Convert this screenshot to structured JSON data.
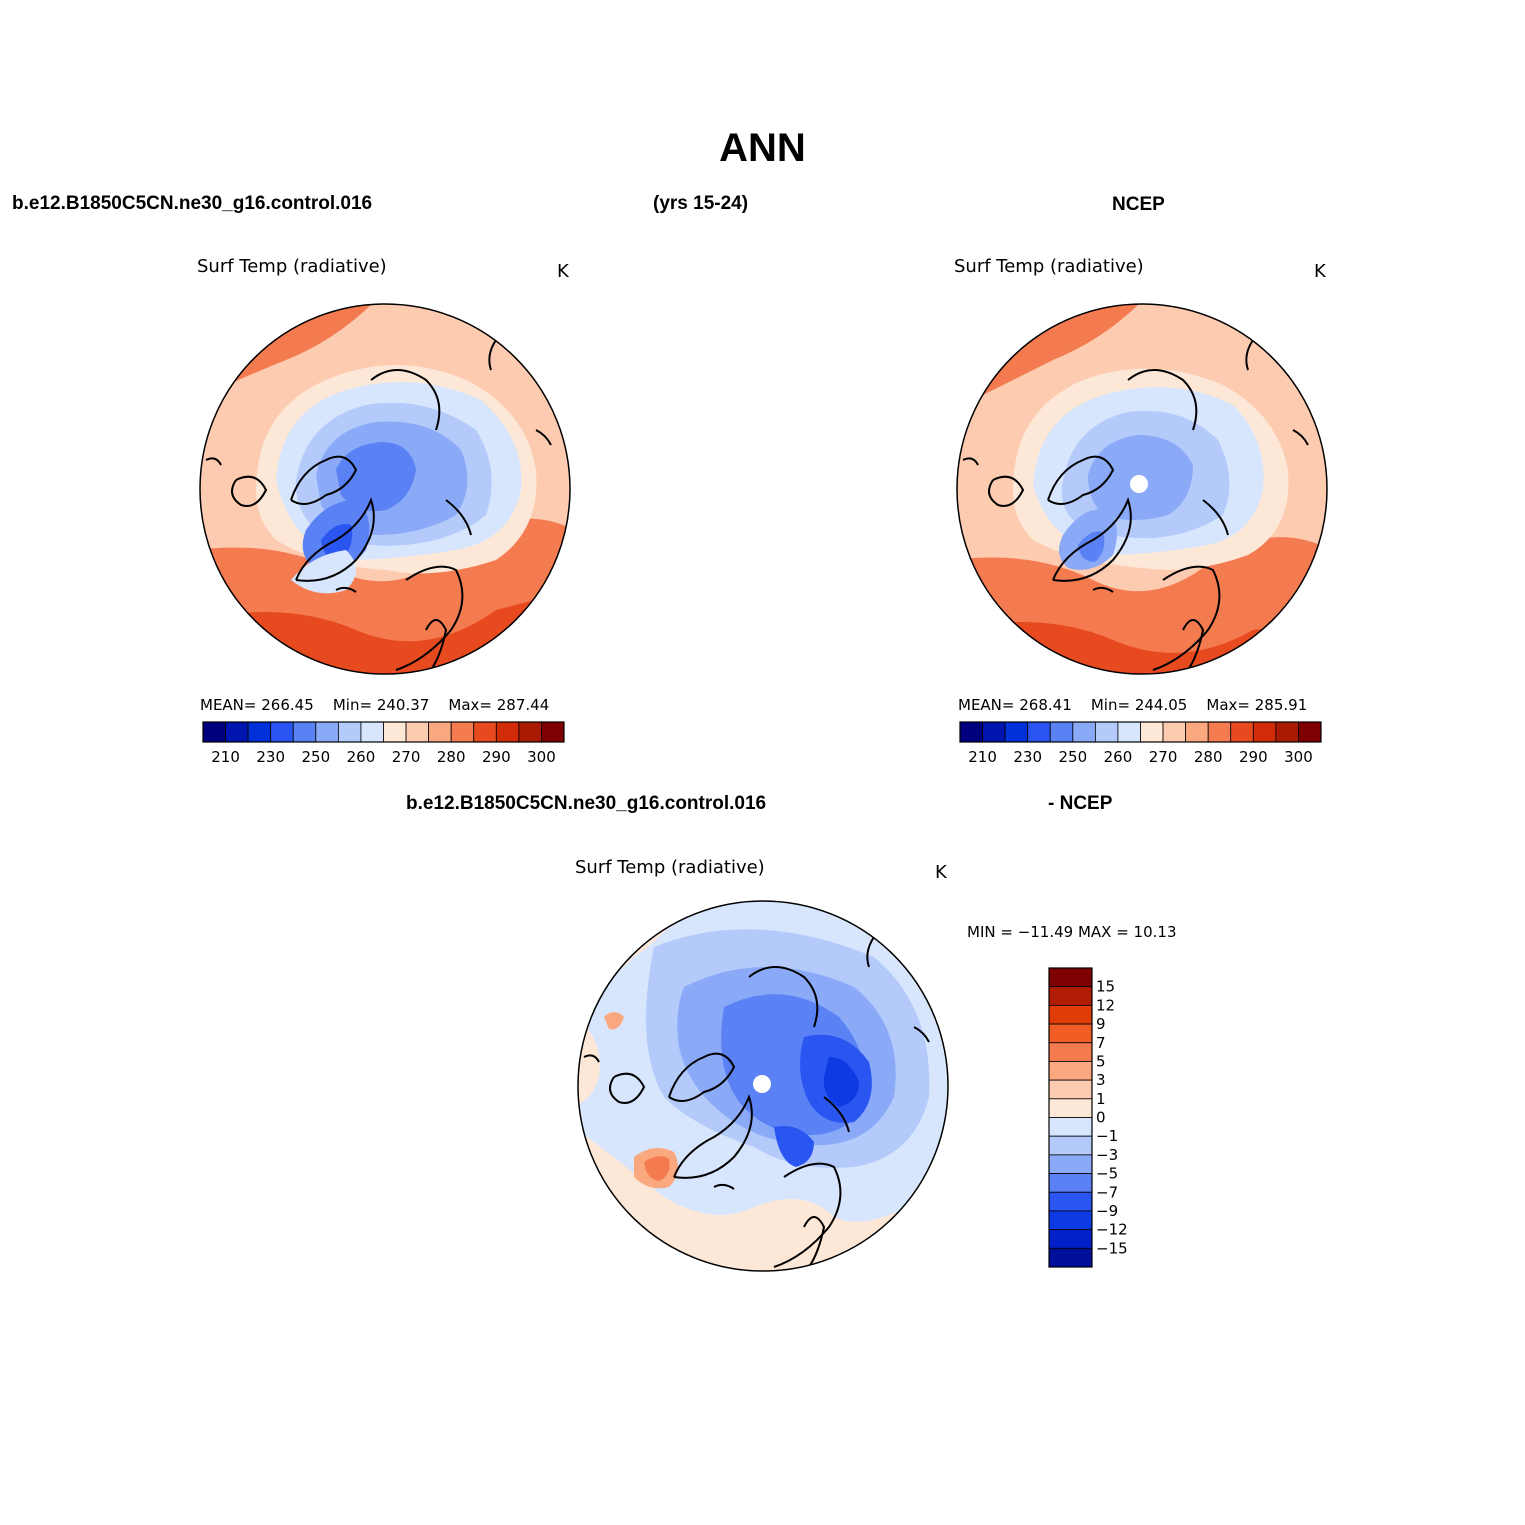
{
  "figure": {
    "title": "ANN",
    "case_left": "b.e12.B1850C5CN.ne30_g16.control.016",
    "years": "(yrs 15-24)",
    "case_right": "NCEP",
    "diff_case_left": "b.e12.B1850C5CN.ne30_g16.control.016",
    "diff_case_right": "- NCEP"
  },
  "panels": [
    {
      "id": "model",
      "variable": "Surf Temp (radiative)",
      "units": "K",
      "stats": {
        "mean_label": "MEAN=",
        "mean": "266.45",
        "min_label": "Min=",
        "min": "240.37",
        "max_label": "Max=",
        "max": "287.44"
      }
    },
    {
      "id": "obs",
      "variable": "Surf Temp (radiative)",
      "units": "K",
      "stats": {
        "mean_label": "MEAN=",
        "mean": "268.41",
        "min_label": "Min=",
        "min": "244.05",
        "max_label": "Max=",
        "max": "285.91"
      }
    },
    {
      "id": "diff",
      "variable": "Surf Temp (radiative)",
      "units": "K",
      "minmax_text": "MIN = −11.49 MAX =  10.13"
    }
  ],
  "colorbar_abs": {
    "colors": [
      "#00007f",
      "#0015b0",
      "#0030d8",
      "#2a55f0",
      "#5a82f5",
      "#8aaaf8",
      "#b4cafb",
      "#d8e6fd",
      "#fde8d8",
      "#fccbb0",
      "#f9a880",
      "#f47a50",
      "#e84a20",
      "#d02c08",
      "#a81a04",
      "#7f0000"
    ],
    "tick_labels": [
      "210",
      "230",
      "250",
      "260",
      "270",
      "280",
      "290",
      "300"
    ]
  },
  "colorbar_diff": {
    "colors": [
      "#7f0000",
      "#b01c04",
      "#e03c08",
      "#f15e25",
      "#f47a50",
      "#f9a880",
      "#fccbb0",
      "#fde8d8",
      "#d8e6fd",
      "#b4cafb",
      "#8aaaf8",
      "#5a82f5",
      "#2a55f0",
      "#0e3ae4",
      "#0020c8",
      "#000f9a"
    ],
    "tick_labels": [
      "15",
      "12",
      "9",
      "7",
      "5",
      "3",
      "1",
      "0",
      "−1",
      "−3",
      "−5",
      "−7",
      "−9",
      "−12",
      "−15"
    ]
  },
  "map_colors": {
    "warm_deep": "#e84a20",
    "warm_mid": "#f47a50",
    "warm_light": "#f9a880",
    "warm_pale": "#fde8d8",
    "cool_pale": "#d8e6fd",
    "cool_light": "#b4cafb",
    "cool_mid": "#8aaaf8",
    "cool_deep": "#5a82f5",
    "cool_strong": "#2a55f0"
  }
}
